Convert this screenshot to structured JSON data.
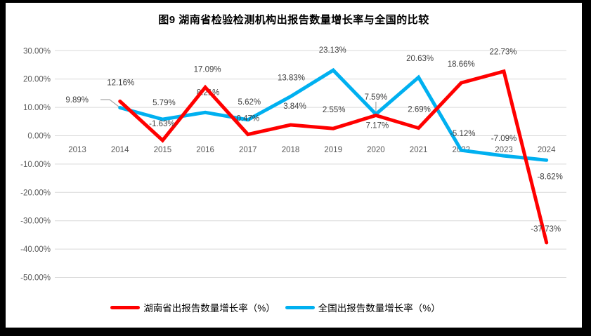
{
  "title": "图9 湖南省检验检测机构出报告数量增长率与全国的比较",
  "colors": {
    "hunan": "#FF0000",
    "national": "#00B0F0",
    "grid": "#D9D9D9",
    "axis_text": "#595959",
    "label_text": "#404040",
    "leader": "#A6A6A6",
    "background": "#FFFFFF",
    "frame": "#000000"
  },
  "chart_data": {
    "type": "line",
    "title": "图9 湖南省检验检测机构出报告数量增长率与全国的比较",
    "categories": [
      "2013",
      "2014",
      "2015",
      "2016",
      "2017",
      "2018",
      "2019",
      "2020",
      "2021",
      "2022",
      "2023",
      "2024"
    ],
    "series": [
      {
        "name": "湖南省出报告数量增长率（%）",
        "key": "hunan",
        "color": "#FF0000",
        "values": [
          null,
          12.16,
          -1.63,
          17.09,
          0.47,
          3.84,
          2.55,
          7.17,
          2.69,
          18.66,
          22.73,
          -37.73
        ],
        "point_labels": [
          null,
          "12.16%",
          "-1.63%",
          "17.09%",
          "0.47%",
          "3.84%",
          "2.55%",
          "7.17%",
          "2.69%",
          "18.66%",
          "22.73%",
          "-37.73%"
        ]
      },
      {
        "name": "全国出报告数量增长率（%）",
        "key": "national",
        "color": "#00B0F0",
        "values": [
          null,
          9.89,
          5.79,
          8.21,
          5.62,
          13.83,
          23.13,
          7.59,
          20.63,
          -5.12,
          -7.09,
          -8.62
        ],
        "point_labels": [
          null,
          "9.89%",
          "5.79%",
          "8.21%",
          "5.62%",
          "13.83%",
          "23.13%",
          "7.59%",
          "20.63%",
          "-5.12%",
          "-7.09%",
          "-8.62%"
        ]
      }
    ],
    "y_axis": {
      "min": -50,
      "max": 30,
      "step": 10,
      "tick_labels": [
        "30.00%",
        "20.00%",
        "10.00%",
        "0.00%",
        "-10.00%",
        "-20.00%",
        "-30.00%",
        "-40.00%",
        "-50.00%"
      ]
    },
    "x_axis_position": "zero-line",
    "grid": true,
    "legend_position": "bottom",
    "legend": [
      "湖南省出报告数量增长率（%）",
      "全国出报告数量增长率（%）"
    ]
  }
}
